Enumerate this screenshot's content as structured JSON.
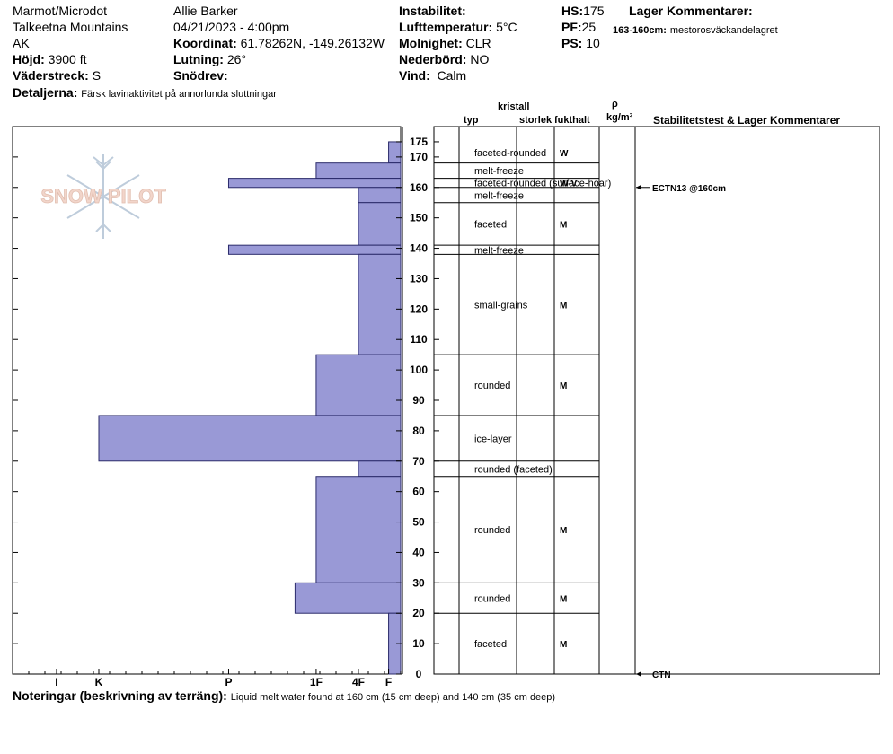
{
  "header": {
    "location": "Marmot/Microdot",
    "range": "Talkeetna Mountains",
    "state": "AK",
    "elevation_label": "Höjd:",
    "elevation": "3900 ft",
    "aspect_label": "Väderstreck:",
    "aspect": "S",
    "observer": "Allie Barker",
    "datetime": "04/21/2023 - 4:00pm",
    "coord_label": "Koordinat:",
    "coords": "61.78262N, -149.26132W",
    "slope_label": "Lutning:",
    "slope": "26°",
    "wind_loading_label": "Snödrev:",
    "wind_loading": "",
    "instability_label": "Instabilitet:",
    "air_temp_label": "Lufttemperatur:",
    "air_temp": "5°C",
    "sky_label": "Molnighet:",
    "sky": "CLR",
    "precip_label": "Nederbörd:",
    "precip": "NO",
    "wind_label": "Vind:",
    "wind": "Calm",
    "hs_label": "HS:",
    "hs": "175",
    "pf_label": "PF:",
    "pf": "25",
    "ps_label": "PS:",
    "ps": "10",
    "layer_comments_label": "Lager Kommentarer:",
    "layer_comment_range": "163-160cm:",
    "layer_comment_text": "mestorosväckandelagret",
    "details_label": "Detaljerna:",
    "details": "Färsk lavinaktivitet på annorlunda sluttningar"
  },
  "logo_text": "SNOW PILOT",
  "columns": {
    "crystal": "kristall",
    "type": "typ",
    "size": "storlek",
    "moisture": "fukthalt",
    "rho": "ρ",
    "density_unit": "kg/m³",
    "stability": "Stabilitetstest & Lager Kommentarer"
  },
  "footer": {
    "label": "Noteringar (beskrivning av terräng):",
    "text": "Liquid melt water found at 160 cm (15 cm deep) and 140 cm (35 cm deep)"
  },
  "colors": {
    "bar_fill": "#9999d6",
    "bar_stroke": "#2b2b6b"
  },
  "chart_data": {
    "type": "bar",
    "title": "",
    "xlabel": "",
    "ylabel": "",
    "ylim": [
      0,
      180
    ],
    "y_ticks": [
      0,
      10,
      20,
      30,
      40,
      50,
      60,
      70,
      80,
      90,
      100,
      110,
      120,
      130,
      140,
      150,
      160,
      170,
      175
    ],
    "hardness_scale": [
      "I",
      "K",
      "P",
      "1F",
      "4F",
      "F"
    ],
    "hardness_positions": {
      "I": 5.7,
      "K": 5.0,
      "P": 2.85,
      "1F": 1.4,
      "4F": 0.7,
      "F": 0.2
    },
    "layers": [
      {
        "top": 175,
        "bottom": 168,
        "hardness_value": 0.2,
        "grain": "faceted-rounded",
        "moisture": "W"
      },
      {
        "top": 168,
        "bottom": 163,
        "hardness_value": 1.4,
        "grain": "melt-freeze",
        "moisture": ""
      },
      {
        "top": 163,
        "bottom": 160,
        "hardness_value": 2.85,
        "grain": "faceted-rounded (surface-hoar)",
        "moisture": "W-V"
      },
      {
        "top": 160,
        "bottom": 155,
        "hardness_value": 0.7,
        "grain": "melt-freeze",
        "moisture": ""
      },
      {
        "top": 155,
        "bottom": 141,
        "hardness_value": 0.7,
        "grain": "faceted",
        "moisture": "M"
      },
      {
        "top": 141,
        "bottom": 138,
        "hardness_value": 2.85,
        "grain": "melt-freeze",
        "moisture": ""
      },
      {
        "top": 138,
        "bottom": 105,
        "hardness_value": 0.7,
        "grain": "small-grains",
        "moisture": "M"
      },
      {
        "top": 105,
        "bottom": 85,
        "hardness_value": 1.4,
        "grain": "rounded",
        "moisture": "M"
      },
      {
        "top": 85,
        "bottom": 70,
        "hardness_value": 5.0,
        "grain": "ice-layer",
        "moisture": ""
      },
      {
        "top": 70,
        "bottom": 65,
        "hardness_value": 0.7,
        "grain": "rounded (faceted)",
        "moisture": ""
      },
      {
        "top": 65,
        "bottom": 30,
        "hardness_value": 1.4,
        "grain": "rounded",
        "moisture": "M"
      },
      {
        "top": 30,
        "bottom": 20,
        "hardness_value": 1.75,
        "grain": "rounded",
        "moisture": "M"
      },
      {
        "top": 20,
        "bottom": 0,
        "hardness_value": 0.2,
        "grain": "faceted",
        "moisture": "M"
      }
    ],
    "stability_tests": [
      {
        "depth": 160,
        "label": "ECTN13 @160cm"
      },
      {
        "depth": 0,
        "label": "CTN"
      }
    ]
  }
}
